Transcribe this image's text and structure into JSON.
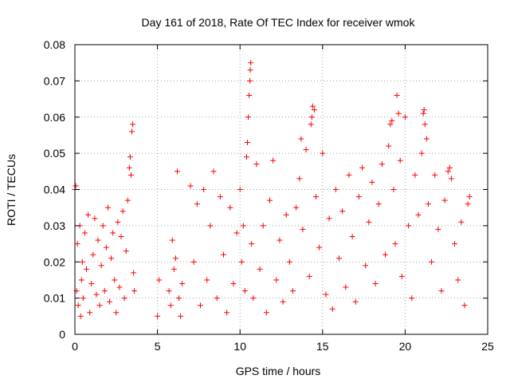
{
  "chart_data": {
    "type": "scatter",
    "title": "Day 161 of 2018, Rate Of TEC Index for receiver wmok",
    "xlabel": "GPS time / hours",
    "ylabel": "ROTI / TECUs",
    "xlim": [
      0,
      25
    ],
    "ylim": [
      0,
      0.08
    ],
    "grid": true,
    "marker": "plus",
    "color": "#ff0000",
    "x_ticks": [
      "0",
      "5",
      "10",
      "15",
      "20",
      "25"
    ],
    "y_ticks": [
      "0",
      "0.01",
      "0.02",
      "0.03",
      "0.04",
      "0.05",
      "0.06",
      "0.07",
      "0.08"
    ],
    "series": [
      {
        "name": "ROTI",
        "points": [
          [
            0.0,
            0.04
          ],
          [
            0.05,
            0.041
          ],
          [
            0.1,
            0.012
          ],
          [
            0.15,
            0.025
          ],
          [
            0.2,
            0.008
          ],
          [
            0.3,
            0.03
          ],
          [
            0.35,
            0.005
          ],
          [
            0.4,
            0.015
          ],
          [
            0.45,
            0.02
          ],
          [
            0.5,
            0.01
          ],
          [
            0.6,
            0.028
          ],
          [
            0.7,
            0.018
          ],
          [
            0.8,
            0.033
          ],
          [
            0.9,
            0.006
          ],
          [
            1.0,
            0.014
          ],
          [
            1.1,
            0.022
          ],
          [
            1.2,
            0.032
          ],
          [
            1.3,
            0.011
          ],
          [
            1.4,
            0.026
          ],
          [
            1.5,
            0.008
          ],
          [
            1.6,
            0.019
          ],
          [
            1.7,
            0.03
          ],
          [
            1.8,
            0.012
          ],
          [
            1.9,
            0.024
          ],
          [
            2.0,
            0.035
          ],
          [
            2.1,
            0.009
          ],
          [
            2.2,
            0.021
          ],
          [
            2.3,
            0.028
          ],
          [
            2.4,
            0.015
          ],
          [
            2.5,
            0.006
          ],
          [
            2.6,
            0.031
          ],
          [
            2.7,
            0.013
          ],
          [
            2.8,
            0.027
          ],
          [
            2.9,
            0.034
          ],
          [
            3.0,
            0.01
          ],
          [
            3.1,
            0.023
          ],
          [
            3.2,
            0.037
          ],
          [
            3.3,
            0.046
          ],
          [
            3.35,
            0.049
          ],
          [
            3.4,
            0.044
          ],
          [
            3.45,
            0.056
          ],
          [
            3.5,
            0.058
          ],
          [
            3.55,
            0.017
          ],
          [
            3.6,
            0.012
          ],
          [
            5.0,
            0.005
          ],
          [
            5.1,
            0.015
          ],
          [
            5.7,
            0.012
          ],
          [
            5.8,
            0.008
          ],
          [
            5.9,
            0.026
          ],
          [
            6.0,
            0.018
          ],
          [
            6.1,
            0.021
          ],
          [
            6.2,
            0.045
          ],
          [
            6.3,
            0.01
          ],
          [
            6.4,
            0.005
          ],
          [
            6.5,
            0.014
          ],
          [
            7.0,
            0.041
          ],
          [
            7.2,
            0.02
          ],
          [
            7.4,
            0.036
          ],
          [
            7.6,
            0.008
          ],
          [
            7.8,
            0.04
          ],
          [
            8.0,
            0.015
          ],
          [
            8.2,
            0.03
          ],
          [
            8.4,
            0.045
          ],
          [
            8.6,
            0.01
          ],
          [
            8.8,
            0.038
          ],
          [
            9.0,
            0.022
          ],
          [
            9.2,
            0.006
          ],
          [
            9.4,
            0.035
          ],
          [
            9.6,
            0.014
          ],
          [
            9.8,
            0.028
          ],
          [
            10.0,
            0.04
          ],
          [
            10.1,
            0.02
          ],
          [
            10.2,
            0.03
          ],
          [
            10.3,
            0.012
          ],
          [
            10.4,
            0.049
          ],
          [
            10.45,
            0.053
          ],
          [
            10.5,
            0.06
          ],
          [
            10.55,
            0.066
          ],
          [
            10.6,
            0.07
          ],
          [
            10.62,
            0.073
          ],
          [
            10.65,
            0.075
          ],
          [
            10.7,
            0.025
          ],
          [
            10.8,
            0.01
          ],
          [
            11.0,
            0.047
          ],
          [
            11.2,
            0.018
          ],
          [
            11.4,
            0.03
          ],
          [
            11.6,
            0.006
          ],
          [
            11.8,
            0.037
          ],
          [
            12.0,
            0.048
          ],
          [
            12.2,
            0.015
          ],
          [
            12.4,
            0.026
          ],
          [
            12.6,
            0.009
          ],
          [
            12.8,
            0.033
          ],
          [
            13.0,
            0.02
          ],
          [
            13.2,
            0.012
          ],
          [
            13.4,
            0.035
          ],
          [
            13.6,
            0.043
          ],
          [
            13.7,
            0.054
          ],
          [
            13.8,
            0.029
          ],
          [
            14.0,
            0.051
          ],
          [
            14.2,
            0.016
          ],
          [
            14.3,
            0.058
          ],
          [
            14.35,
            0.06
          ],
          [
            14.4,
            0.063
          ],
          [
            14.5,
            0.062
          ],
          [
            14.6,
            0.038
          ],
          [
            14.8,
            0.024
          ],
          [
            15.0,
            0.05
          ],
          [
            15.2,
            0.011
          ],
          [
            15.4,
            0.032
          ],
          [
            15.6,
            0.007
          ],
          [
            15.8,
            0.04
          ],
          [
            16.0,
            0.021
          ],
          [
            16.2,
            0.034
          ],
          [
            16.4,
            0.013
          ],
          [
            16.6,
            0.044
          ],
          [
            16.8,
            0.027
          ],
          [
            17.0,
            0.009
          ],
          [
            17.2,
            0.038
          ],
          [
            17.4,
            0.046
          ],
          [
            17.6,
            0.019
          ],
          [
            17.8,
            0.031
          ],
          [
            18.0,
            0.042
          ],
          [
            18.2,
            0.014
          ],
          [
            18.4,
            0.036
          ],
          [
            18.6,
            0.047
          ],
          [
            18.8,
            0.022
          ],
          [
            19.0,
            0.052
          ],
          [
            19.1,
            0.058
          ],
          [
            19.2,
            0.059
          ],
          [
            19.3,
            0.04
          ],
          [
            19.4,
            0.025
          ],
          [
            19.5,
            0.066
          ],
          [
            19.6,
            0.061
          ],
          [
            19.7,
            0.048
          ],
          [
            19.8,
            0.016
          ],
          [
            20.0,
            0.06
          ],
          [
            20.2,
            0.03
          ],
          [
            20.4,
            0.01
          ],
          [
            20.6,
            0.044
          ],
          [
            20.8,
            0.033
          ],
          [
            21.0,
            0.05
          ],
          [
            21.1,
            0.061
          ],
          [
            21.15,
            0.062
          ],
          [
            21.2,
            0.058
          ],
          [
            21.3,
            0.054
          ],
          [
            21.4,
            0.036
          ],
          [
            21.6,
            0.02
          ],
          [
            21.8,
            0.044
          ],
          [
            22.0,
            0.029
          ],
          [
            22.2,
            0.012
          ],
          [
            22.4,
            0.037
          ],
          [
            22.6,
            0.045
          ],
          [
            22.7,
            0.046
          ],
          [
            22.8,
            0.043
          ],
          [
            23.0,
            0.025
          ],
          [
            23.2,
            0.015
          ],
          [
            23.4,
            0.031
          ],
          [
            23.6,
            0.008
          ],
          [
            23.8,
            0.036
          ],
          [
            23.9,
            0.038
          ]
        ]
      }
    ]
  }
}
